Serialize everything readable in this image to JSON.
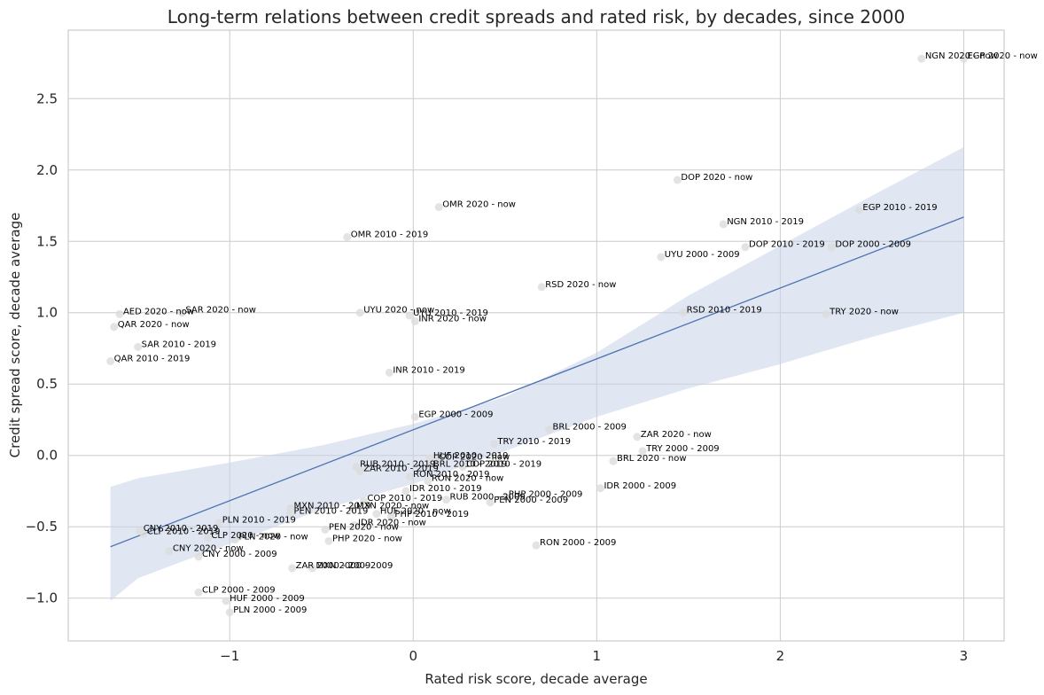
{
  "chart_data": {
    "type": "scatter",
    "title": "Long-term relations between credit spreads and rated risk, by decades, since 2000",
    "xlabel": "Rated risk score, decade average",
    "ylabel": "Credit spread score, decade average",
    "xlim": [
      -1.88,
      3.22
    ],
    "ylim": [
      -1.3,
      2.98
    ],
    "x_ticks": [
      -1,
      0,
      1,
      2,
      3
    ],
    "x_tick_labels": [
      "−1",
      "0",
      "1",
      "2",
      "3"
    ],
    "y_ticks": [
      -1.0,
      -0.5,
      0.0,
      0.5,
      1.0,
      1.5,
      2.0,
      2.5
    ],
    "y_tick_labels": [
      "−1.0",
      "−0.5",
      "0.0",
      "0.5",
      "1.0",
      "1.5",
      "2.0",
      "2.5"
    ],
    "grid": true,
    "regression": {
      "x": [
        -1.65,
        3.0
      ],
      "y": [
        -0.64,
        1.67
      ],
      "ci_x": [
        -1.65,
        -1.5,
        -1.0,
        -0.5,
        0.0,
        0.5,
        1.0,
        1.5,
        2.0,
        2.5,
        3.0
      ],
      "ci_upper": [
        -0.22,
        -0.16,
        -0.05,
        0.07,
        0.22,
        0.41,
        0.72,
        1.12,
        1.47,
        1.82,
        2.16
      ],
      "ci_lower": [
        -1.02,
        -0.86,
        -0.62,
        -0.38,
        -0.2,
        0.03,
        0.27,
        0.47,
        0.64,
        0.83,
        1.0
      ],
      "color": "#4c72b0",
      "band_color": "#c8d3e8"
    },
    "points": [
      {
        "label": "NGN 2020 - now",
        "x": 2.77,
        "y": 2.78
      },
      {
        "label": "EGP 2020 - now",
        "x": 3.0,
        "y": 2.78
      },
      {
        "label": "DOP 2020 - now",
        "x": 1.44,
        "y": 1.93
      },
      {
        "label": "EGP 2010 - 2019",
        "x": 2.43,
        "y": 1.72
      },
      {
        "label": "OMR 2020 - now",
        "x": 0.14,
        "y": 1.74
      },
      {
        "label": "NGN 2010 - 2019",
        "x": 1.69,
        "y": 1.62
      },
      {
        "label": "OMR 2010 - 2019",
        "x": -0.36,
        "y": 1.53
      },
      {
        "label": "DOP 2010 - 2019",
        "x": 1.81,
        "y": 1.46
      },
      {
        "label": "DOP 2000 - 2009",
        "x": 2.28,
        "y": 1.46
      },
      {
        "label": "UYU 2000 - 2009",
        "x": 1.35,
        "y": 1.39
      },
      {
        "label": "RSD 2020 - now",
        "x": 0.7,
        "y": 1.18
      },
      {
        "label": "AED 2020 - now",
        "x": -1.6,
        "y": 0.99
      },
      {
        "label": "SAR 2020 - now",
        "x": -1.26,
        "y": 1.0
      },
      {
        "label": "UYU 2020 - now",
        "x": -0.29,
        "y": 1.0
      },
      {
        "label": "UYU 2010 - 2019",
        "x": -0.02,
        "y": 0.98
      },
      {
        "label": "INR 2020 - now",
        "x": 0.01,
        "y": 0.94
      },
      {
        "label": "RSD 2010 - 2019",
        "x": 1.47,
        "y": 1.0
      },
      {
        "label": "TRY 2020 - now",
        "x": 2.25,
        "y": 0.99
      },
      {
        "label": "QAR 2020 - now",
        "x": -1.63,
        "y": 0.9
      },
      {
        "label": "SAR 2010 - 2019",
        "x": -1.5,
        "y": 0.76
      },
      {
        "label": "QAR 2010 - 2019",
        "x": -1.65,
        "y": 0.66
      },
      {
        "label": "INR 2010 - 2019",
        "x": -0.13,
        "y": 0.58
      },
      {
        "label": "EGP 2000 - 2009",
        "x": 0.01,
        "y": 0.27
      },
      {
        "label": "BRL 2000 - 2009",
        "x": 0.74,
        "y": 0.18
      },
      {
        "label": "ZAR 2020 - now",
        "x": 1.22,
        "y": 0.13
      },
      {
        "label": "TRY 2010 - 2019",
        "x": 0.44,
        "y": 0.08
      },
      {
        "label": "TRY 2000 - 2009",
        "x": 1.25,
        "y": 0.03
      },
      {
        "label": "HUF 2010 - 2019",
        "x": 0.09,
        "y": -0.02
      },
      {
        "label": "COP 2020 - now",
        "x": 0.12,
        "y": -0.03
      },
      {
        "label": "BRL 2010 - 2019",
        "x": 0.09,
        "y": -0.08
      },
      {
        "label": "COP 2010 - 2019",
        "x": 0.27,
        "y": -0.08
      },
      {
        "label": "BRL 2020 - now",
        "x": 1.09,
        "y": -0.04
      },
      {
        "label": "RUB 2010 - 2019",
        "x": -0.31,
        "y": -0.08
      },
      {
        "label": "ZAR 2010 - 2019",
        "x": -0.29,
        "y": -0.11
      },
      {
        "label": "RON 2010 - 2019",
        "x": -0.02,
        "y": -0.15
      },
      {
        "label": "RON 2020 - now",
        "x": 0.08,
        "y": -0.18
      },
      {
        "label": "IDR 2010 - 2019",
        "x": -0.04,
        "y": -0.25
      },
      {
        "label": "IDR 2000 - 2009",
        "x": 1.02,
        "y": -0.23
      },
      {
        "label": "PHP 2000 - 2009",
        "x": 0.5,
        "y": -0.29
      },
      {
        "label": "COP 2010 - 2019",
        "x": -0.27,
        "y": -0.32
      },
      {
        "label": "RUB 2000 - 2009",
        "x": 0.18,
        "y": -0.31
      },
      {
        "label": "PEN 2000 - 2009",
        "x": 0.42,
        "y": -0.33
      },
      {
        "label": "MXN 2010 - 2019",
        "x": -0.67,
        "y": -0.37
      },
      {
        "label": "MXN 2020 - now",
        "x": -0.33,
        "y": -0.37
      },
      {
        "label": "PEN 2010 - 2019",
        "x": -0.67,
        "y": -0.41
      },
      {
        "label": "HUF 2020 - now",
        "x": -0.2,
        "y": -0.41
      },
      {
        "label": "PHP 2010 - 2019",
        "x": -0.12,
        "y": -0.43
      },
      {
        "label": "IDR 2020 - now",
        "x": -0.32,
        "y": -0.49
      },
      {
        "label": "PLN 2010 - 2019",
        "x": -1.06,
        "y": -0.47
      },
      {
        "label": "PEN 2020 - now",
        "x": -0.48,
        "y": -0.52
      },
      {
        "label": "CNY 2010 - 2019",
        "x": -1.49,
        "y": -0.53
      },
      {
        "label": "CLP 2010 - 2019",
        "x": -1.47,
        "y": -0.55
      },
      {
        "label": "CLP 2020 - now",
        "x": -1.12,
        "y": -0.58
      },
      {
        "label": "PLN 2020 - now",
        "x": -0.97,
        "y": -0.59
      },
      {
        "label": "PHP 2020 - now",
        "x": -0.46,
        "y": -0.6
      },
      {
        "label": "RON 2000 - 2009",
        "x": 0.67,
        "y": -0.63
      },
      {
        "label": "CNY 2020 - now",
        "x": -1.33,
        "y": -0.67
      },
      {
        "label": "CNY 2000 - 2009",
        "x": -1.17,
        "y": -0.71
      },
      {
        "label": "ZAR 2000 - 2009",
        "x": -0.66,
        "y": -0.79
      },
      {
        "label": "MXN 2000 - 2009",
        "x": -0.55,
        "y": -0.79
      },
      {
        "label": "CLP 2000 - 2009",
        "x": -1.17,
        "y": -0.96
      },
      {
        "label": "HUF 2000 - 2009",
        "x": -1.02,
        "y": -1.02
      },
      {
        "label": "PLN 2000 - 2009",
        "x": -1.0,
        "y": -1.1
      }
    ]
  }
}
